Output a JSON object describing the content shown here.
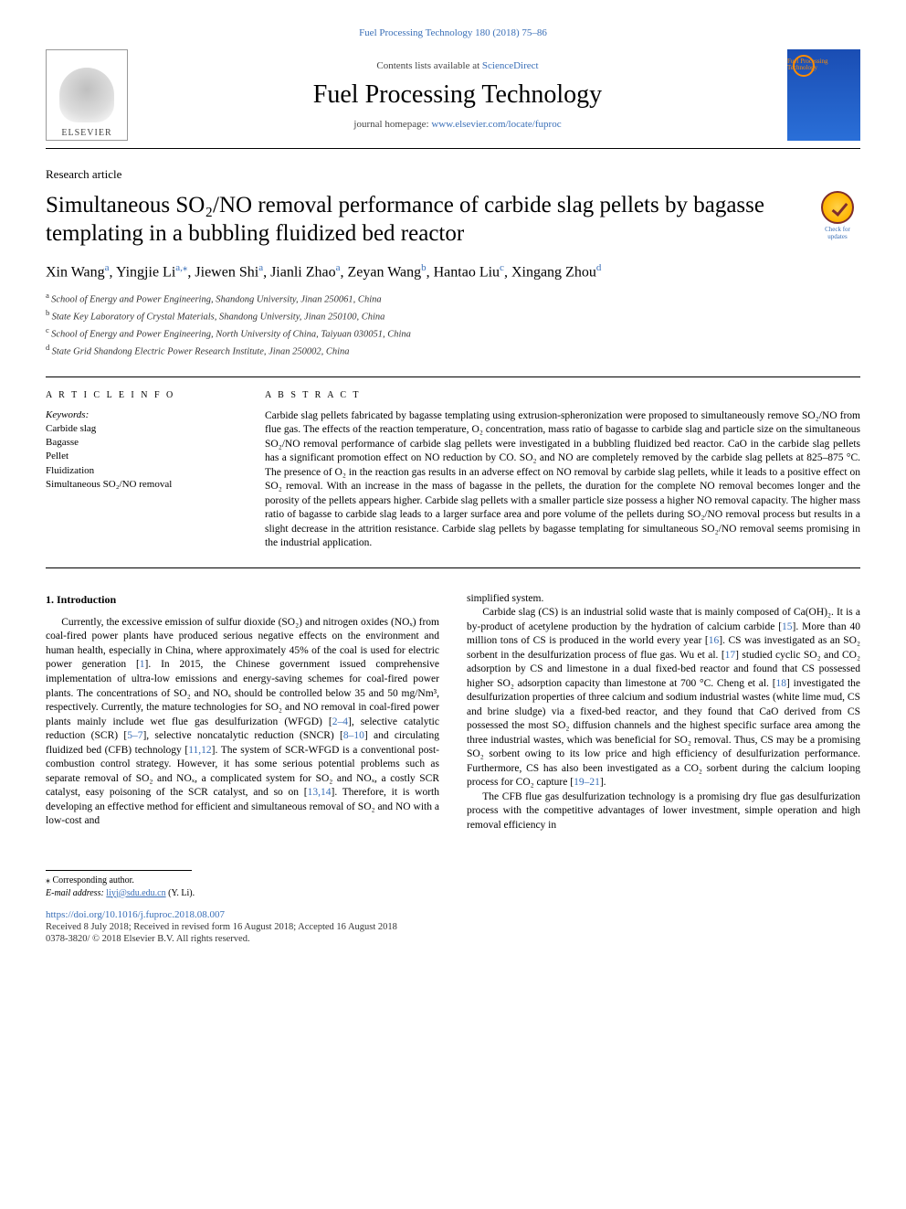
{
  "header": {
    "citation": "Fuel Processing Technology 180 (2018) 75–86",
    "contents_prefix": "Contents lists available at ",
    "contents_link": "ScienceDirect",
    "journal_name": "Fuel Processing Technology",
    "homepage_prefix": "journal homepage: ",
    "homepage_url": "www.elsevier.com/locate/fuproc",
    "elsevier_name": "ELSEVIER",
    "cover_text": "Fuel\nProcessing\nTechnology"
  },
  "article": {
    "type": "Research article",
    "title": "Simultaneous SO₂/NO removal performance of carbide slag pellets by bagasse templating in a bubbling fluidized bed reactor",
    "checkmark_label": "Check for updates"
  },
  "authors": {
    "line": "Xin Wang|a|, Yingjie Li|a,*|, Jiewen Shi|a|, Jianli Zhao|a|, Zeyan Wang|b|, Hantao Liu|c|, Xingang Zhou|d|",
    "parts": [
      {
        "name": "Xin Wang",
        "sup": "a"
      },
      {
        "name": "Yingjie Li",
        "sup": "a,⁎"
      },
      {
        "name": "Jiewen Shi",
        "sup": "a"
      },
      {
        "name": "Jianli Zhao",
        "sup": "a"
      },
      {
        "name": "Zeyan Wang",
        "sup": "b"
      },
      {
        "name": "Hantao Liu",
        "sup": "c"
      },
      {
        "name": "Xingang Zhou",
        "sup": "d"
      }
    ]
  },
  "affiliations": [
    {
      "sup": "a",
      "text": "School of Energy and Power Engineering, Shandong University, Jinan 250061, China"
    },
    {
      "sup": "b",
      "text": "State Key Laboratory of Crystal Materials, Shandong University, Jinan 250100, China"
    },
    {
      "sup": "c",
      "text": "School of Energy and Power Engineering, North University of China, Taiyuan 030051, China"
    },
    {
      "sup": "d",
      "text": "State Grid Shandong Electric Power Research Institute, Jinan 250002, China"
    }
  ],
  "info_head": "A R T I C L E  I N F O",
  "abs_head": "A B S T R A C T",
  "keywords_label": "Keywords:",
  "keywords": [
    "Carbide slag",
    "Bagasse",
    "Pellet",
    "Fluidization",
    "Simultaneous SO₂/NO removal"
  ],
  "abstract": "Carbide slag pellets fabricated by bagasse templating using extrusion-spheronization were proposed to simultaneously remove SO₂/NO from flue gas. The effects of the reaction temperature, O₂ concentration, mass ratio of bagasse to carbide slag and particle size on the simultaneous SO₂/NO removal performance of carbide slag pellets were investigated in a bubbling fluidized bed reactor. CaO in the carbide slag pellets has a significant promotion effect on NO reduction by CO. SO₂ and NO are completely removed by the carbide slag pellets at 825–875 °C. The presence of O₂ in the reaction gas results in an adverse effect on NO removal by carbide slag pellets, while it leads to a positive effect on SO₂ removal. With an increase in the mass of bagasse in the pellets, the duration for the complete NO removal becomes longer and the porosity of the pellets appears higher. Carbide slag pellets with a smaller particle size possess a higher NO removal capacity. The higher mass ratio of bagasse to carbide slag leads to a larger surface area and pore volume of the pellets during SO₂/NO removal process but results in a slight decrease in the attrition resistance. Carbide slag pellets by bagasse templating for simultaneous SO₂/NO removal seems promising in the industrial application.",
  "intro_heading": "1.  Introduction",
  "intro_col1": "Currently, the excessive emission of sulfur dioxide (SO₂) and nitrogen oxides (NOₓ) from coal-fired power plants have produced serious negative effects on the environment and human health, especially in China, where approximately 45% of the coal is used for electric power generation [1]. In 2015, the Chinese government issued comprehensive implementation of ultra-low emissions and energy-saving schemes for coal-fired power plants. The concentrations of SO₂ and NOₓ should be controlled below 35 and 50 mg/Nm³, respectively. Currently, the mature technologies for SO₂ and NO removal in coal-fired power plants mainly include wet flue gas desulfurization (WFGD) [2–4], selective catalytic reduction (SCR) [5–7], selective noncatalytic reduction (SNCR) [8–10] and circulating fluidized bed (CFB) technology [11,12]. The system of SCR-WFGD is a conventional post-combustion control strategy. However, it has some serious potential problems such as separate removal of SO₂ and NOₓ, a complicated system for SO₂ and NOₓ, a costly SCR catalyst, easy poisoning of the SCR catalyst, and so on [13,14]. Therefore, it is worth developing an effective method for efficient and simultaneous removal of SO₂ and NO with a low-cost and",
  "intro_col2_p0": "simplified system.",
  "intro_col2_p1": "Carbide slag (CS) is an industrial solid waste that is mainly composed of Ca(OH)₂. It is a by-product of acetylene production by the hydration of calcium carbide [15]. More than 40 million tons of CS is produced in the world every year [16]. CS was investigated as an SO₂ sorbent in the desulfurization process of flue gas. Wu et al. [17] studied cyclic SO₂ and CO₂ adsorption by CS and limestone in a dual fixed-bed reactor and found that CS possessed higher SO₂ adsorption capacity than limestone at 700 °C. Cheng et al. [18] investigated the desulfurization properties of three calcium and sodium industrial wastes (white lime mud, CS and brine sludge) via a fixed-bed reactor, and they found that CaO derived from CS possessed the most SO₂ diffusion channels and the highest specific surface area among the three industrial wastes, which was beneficial for SO₂ removal. Thus, CS may be a promising SO₂ sorbent owing to its low price and high efficiency of desulfurization performance. Furthermore, CS has also been investigated as a CO₂ sorbent during the calcium looping process for CO₂ capture [19–21].",
  "intro_col2_p2": "The CFB flue gas desulfurization technology is a promising dry flue gas desulfurization process with the competitive advantages of lower investment, simple operation and high removal efficiency in",
  "refs": {
    "r1": "1",
    "r2_4": "2–4",
    "r5_7": "5–7",
    "r8_10": "8–10",
    "r11_12": "11,12",
    "r13_14": "13,14",
    "r15": "15",
    "r16": "16",
    "r17": "17",
    "r18": "18",
    "r19_21": "19–21"
  },
  "footer": {
    "corr": "⁎ Corresponding author.",
    "email_label": "E-mail address: ",
    "email": "liyj@sdu.edu.cn",
    "email_suffix": " (Y. Li).",
    "doi": "https://doi.org/10.1016/j.fuproc.2018.08.007",
    "received": "Received 8 July 2018; Received in revised form 16 August 2018; Accepted 16 August 2018",
    "copyright": "0378-3820/ © 2018 Elsevier B.V. All rights reserved."
  },
  "colors": {
    "link": "#3a6fb7",
    "text": "#000000",
    "cover_bg_top": "#1a4db3",
    "cover_bg_bot": "#2a6fd8",
    "cover_accent": "#ff8c00",
    "badge_border": "#7e2d2d"
  }
}
